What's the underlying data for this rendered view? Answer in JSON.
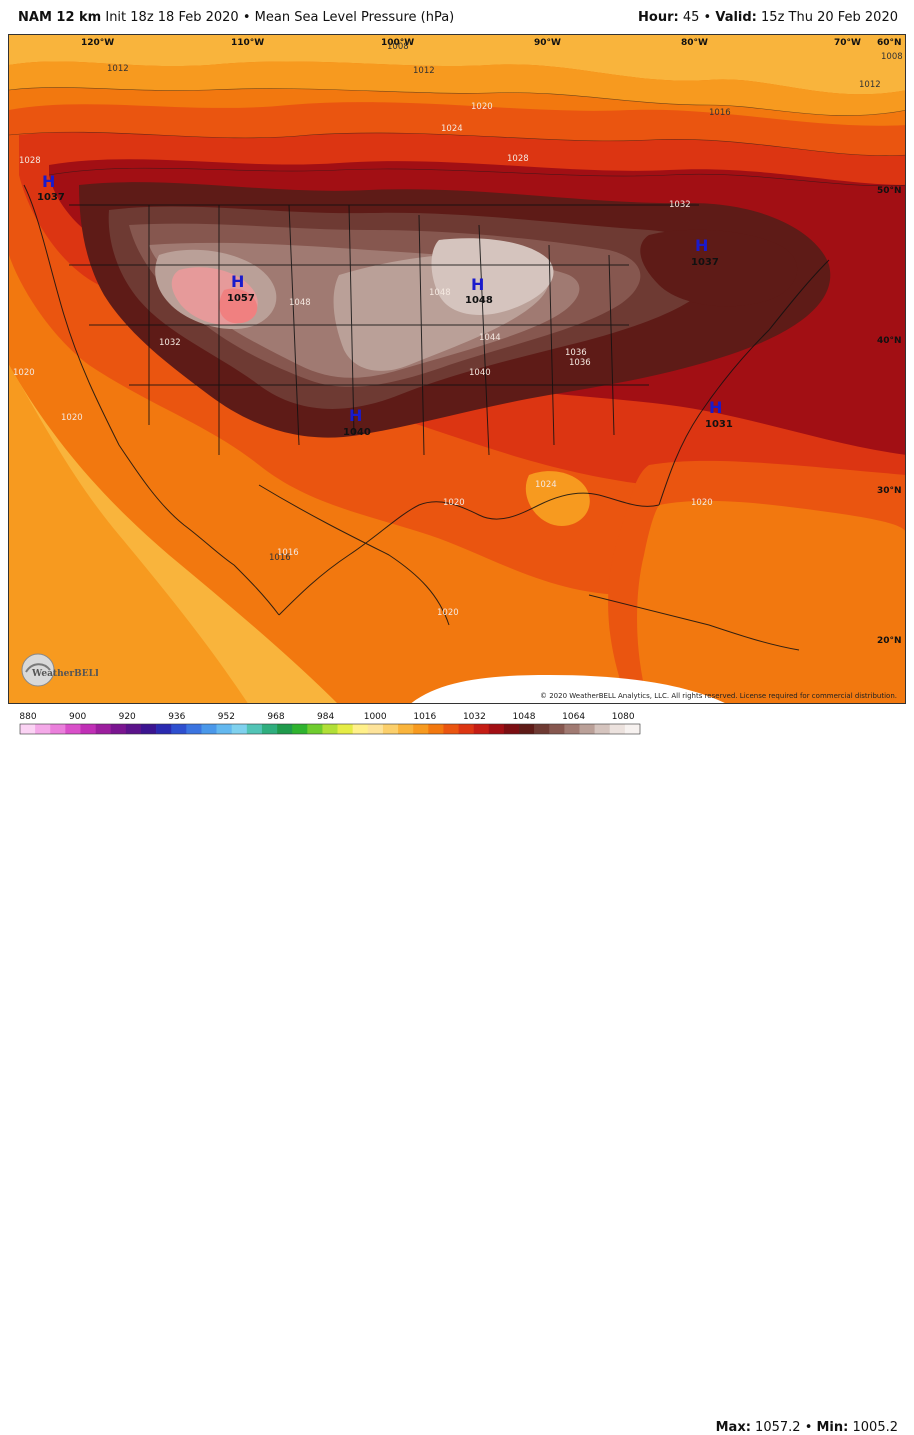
{
  "header": {
    "model": "NAM 12 km",
    "init_text": "Init 18z 18 Feb 2020",
    "bullet": "•",
    "field": "Mean Sea Level Pressure (hPa)",
    "hour_label": "Hour:",
    "hour_value": "45",
    "valid_label": "Valid:",
    "valid_value": "15z Thu 20 Feb 2020"
  },
  "longitudes": [
    "120°W",
    "110°W",
    "100°W",
    "90°W",
    "80°W",
    "70°W"
  ],
  "latitudes": [
    "60°N",
    "50°N",
    "40°N",
    "30°N",
    "20°N"
  ],
  "pressure_centers": [
    {
      "letter": "H",
      "value": "1037",
      "id": "nw"
    },
    {
      "letter": "H",
      "value": "1057",
      "id": "rockies"
    },
    {
      "letter": "H",
      "value": "1048",
      "id": "plains"
    },
    {
      "letter": "H",
      "value": "1040",
      "id": "texas"
    },
    {
      "letter": "H",
      "value": "1037",
      "id": "northeast"
    },
    {
      "letter": "H",
      "value": "1031",
      "id": "carolina"
    }
  ],
  "contour_labels": [
    "1012",
    "1008",
    "1012",
    "1020",
    "1024",
    "1028",
    "1028",
    "1032",
    "1036",
    "1040",
    "1044",
    "1048",
    "1048",
    "1036",
    "1020",
    "1020",
    "1016",
    "1020",
    "1024",
    "1016",
    "1012",
    "1008",
    "1020",
    "1016",
    "1020",
    "1032"
  ],
  "colorbar": {
    "ticks": [
      "880",
      "900",
      "920",
      "936",
      "952",
      "968",
      "984",
      "1000",
      "1016",
      "1032",
      "1048",
      "1064",
      "1080"
    ],
    "colors": [
      "#fbd3f4",
      "#f4a9e8",
      "#ea7fdb",
      "#d950c9",
      "#c02fb6",
      "#9c1e9e",
      "#7a1590",
      "#5b138a",
      "#3b1490",
      "#2a2ab0",
      "#2e4fcf",
      "#3b74e0",
      "#4a98ea",
      "#63b8ef",
      "#7fd1ee",
      "#52c4b6",
      "#2fae7e",
      "#1f9a4c",
      "#2fb32f",
      "#6fcc2e",
      "#b1df37",
      "#e5ec45",
      "#fff08a",
      "#fde39a",
      "#fbcf6b",
      "#f9b43c",
      "#f79a1f",
      "#f2780f",
      "#ea5510",
      "#dc3512",
      "#c51c14",
      "#a20f14",
      "#7b0e12",
      "#5e1b17",
      "#6e3a33",
      "#86574f",
      "#a07a72",
      "#baa098",
      "#d5c4be",
      "#ece2de",
      "#f7f2f0"
    ]
  },
  "stats": {
    "max_label": "Max:",
    "max_value": "1057.2",
    "bullet": "•",
    "min_label": "Min:",
    "min_value": "1005.2"
  },
  "copyright": "© 2020 WeatherBELL Analytics, LLC. All rights reserved. License required for commercial distribution.",
  "logo_text": "WeatherBELL",
  "colors": {
    "orange_light": "#f9b43c",
    "orange": "#f2780f",
    "red_orange": "#ea5510",
    "red": "#dc3512",
    "dark_red": "#a20f14",
    "brown": "#5e1b17",
    "taupe": "#86574f",
    "light_taupe": "#baa098",
    "pale": "#d5c4be",
    "high_blue": "#1a1acc"
  }
}
